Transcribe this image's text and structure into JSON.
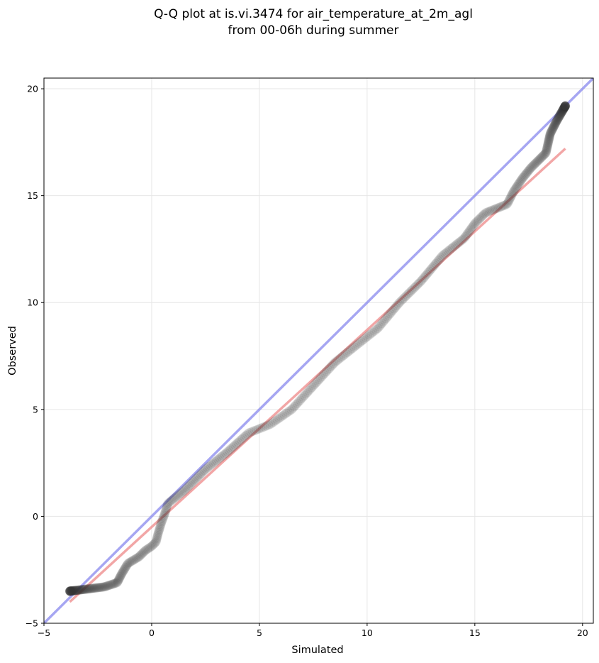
{
  "chart_data": {
    "type": "scatter",
    "title_lines": [
      "Q-Q plot at is.vi.3474 for air_temperature_at_2m_agl",
      "from 00-06h during summer"
    ],
    "xlabel": "Simulated",
    "ylabel": "Observed",
    "xlim": [
      -5,
      20.5
    ],
    "ylim": [
      -5,
      20.5
    ],
    "xticks": [
      -5,
      0,
      5,
      10,
      15,
      20
    ],
    "yticks": [
      -5,
      0,
      5,
      10,
      15,
      20
    ],
    "xtick_labels": [
      "−5",
      "0",
      "5",
      "10",
      "15",
      "20"
    ],
    "ytick_labels": [
      "−5",
      "0",
      "5",
      "10",
      "15",
      "20"
    ],
    "grid": true,
    "series_color": "#333333",
    "identity_line": {
      "color": "#8888ee",
      "from": [
        -5,
        -5
      ],
      "to": [
        20.5,
        20.5
      ]
    },
    "fit_line": {
      "color": "#ee8888",
      "from": [
        -3.8,
        -4.0
      ],
      "to": [
        19.2,
        17.2
      ]
    },
    "anchors": [
      [
        -3.8,
        -3.5
      ],
      [
        -2.2,
        -3.3
      ],
      [
        -1.6,
        -3.1
      ],
      [
        -1.4,
        -2.7
      ],
      [
        -1.1,
        -2.2
      ],
      [
        -0.6,
        -1.9
      ],
      [
        -0.3,
        -1.6
      ],
      [
        0.0,
        -1.4
      ],
      [
        0.2,
        -1.2
      ],
      [
        0.3,
        -0.8
      ],
      [
        0.45,
        -0.3
      ],
      [
        0.6,
        0.1
      ],
      [
        0.75,
        0.6
      ],
      [
        1.5,
        1.2
      ],
      [
        2.5,
        2.2
      ],
      [
        3.5,
        3.0
      ],
      [
        4.5,
        3.9
      ],
      [
        5.5,
        4.3
      ],
      [
        6.5,
        5.0
      ],
      [
        7.5,
        6.1
      ],
      [
        8.5,
        7.2
      ],
      [
        9.5,
        8.0
      ],
      [
        10.5,
        8.8
      ],
      [
        11.5,
        10.0
      ],
      [
        12.5,
        11.0
      ],
      [
        13.5,
        12.2
      ],
      [
        14.5,
        13.0
      ],
      [
        15.0,
        13.7
      ],
      [
        15.5,
        14.2
      ],
      [
        16.0,
        14.4
      ],
      [
        16.5,
        14.6
      ],
      [
        16.8,
        15.2
      ],
      [
        17.2,
        15.8
      ],
      [
        17.6,
        16.3
      ],
      [
        18.0,
        16.7
      ],
      [
        18.3,
        17.0
      ],
      [
        18.5,
        17.9
      ],
      [
        18.8,
        18.5
      ],
      [
        19.2,
        19.2
      ]
    ],
    "n_points": 520
  }
}
